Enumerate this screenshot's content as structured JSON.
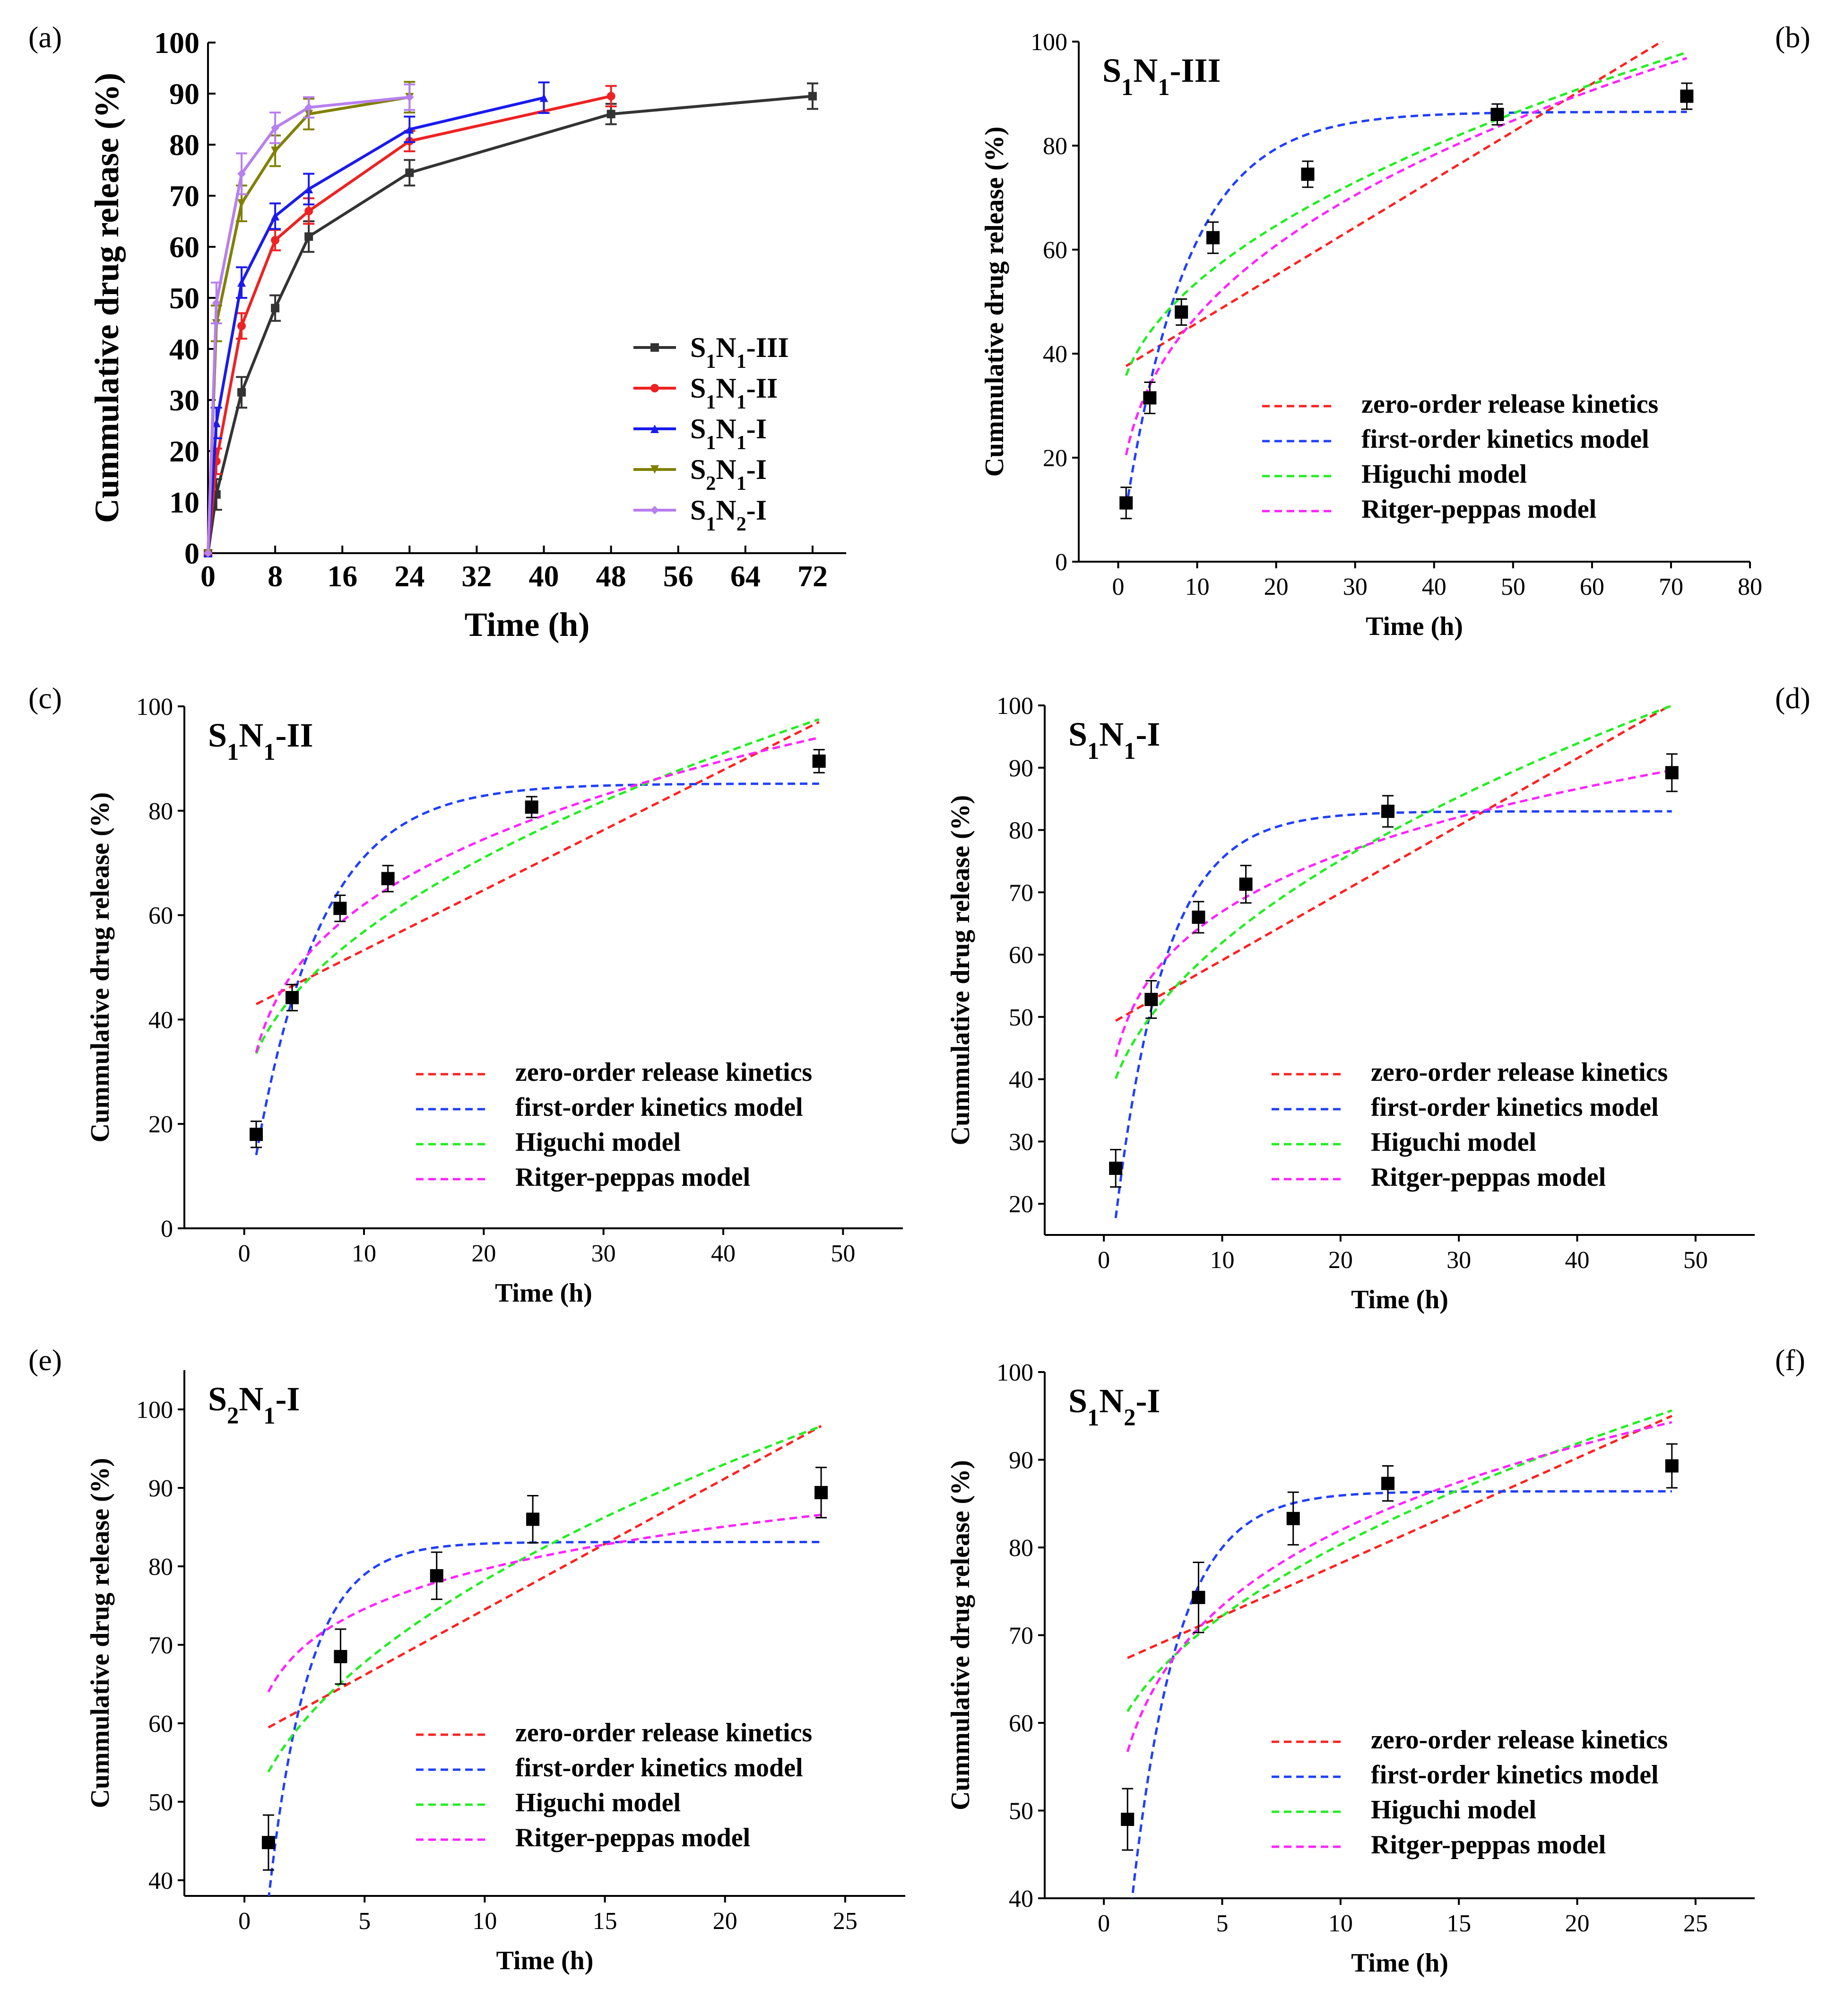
{
  "panel_labels": [
    "(a)",
    "(b)",
    "(c)",
    "(d)",
    "(e)",
    "(f)"
  ],
  "colors": {
    "S1N1-III": "#333333",
    "S1N1-II": "#ee2222",
    "S1N1-I": "#1a1aee",
    "S2N1-I": "#808000",
    "S1N2-I": "#b77fef",
    "zero": "#ff2020",
    "first": "#1f3fff",
    "higuchi": "#22ee22",
    "ritger": "#ff22ff",
    "points": "#000000"
  },
  "model_legend": [
    "zero-order release kinetics",
    "first-order kinetics model",
    "Higuchi model",
    "Ritger-peppas model"
  ],
  "chart_data": [
    {
      "id": "a",
      "type": "line",
      "xlabel": "Time (h)",
      "ylabel": "Cummulative drug release (%)",
      "xlim": [
        0,
        76
      ],
      "ylim": [
        0,
        100
      ],
      "xticks": [
        0,
        8,
        16,
        24,
        32,
        40,
        48,
        56,
        64,
        72
      ],
      "yticks": [
        0,
        10,
        20,
        30,
        40,
        50,
        60,
        70,
        80,
        90,
        100
      ],
      "legend_position": "center-right",
      "series": [
        {
          "name": "S1N1-III",
          "key": "S1N1-III",
          "sub": [
            "1",
            "1"
          ],
          "base": [
            "S",
            "N",
            "-III"
          ],
          "marker": "square",
          "x": [
            0,
            1,
            4,
            8,
            12,
            24,
            48,
            72
          ],
          "y": [
            0,
            11.5,
            31.5,
            48,
            62,
            74.5,
            86,
            89.5
          ],
          "err": [
            0,
            3,
            3,
            2.5,
            3,
            2.5,
            2,
            2.5
          ]
        },
        {
          "name": "S1N1-II",
          "key": "S1N1-II",
          "sub": [
            "1",
            "1"
          ],
          "base": [
            "S",
            "N",
            "-II"
          ],
          "marker": "circle",
          "x": [
            0,
            1,
            4,
            8,
            12,
            24,
            48
          ],
          "y": [
            0,
            18,
            44.5,
            61.3,
            67,
            80.7,
            89.5
          ],
          "err": [
            0,
            2.5,
            2.5,
            2,
            2.5,
            2,
            2
          ]
        },
        {
          "name": "S1N1-I",
          "key": "S1N1-I",
          "sub": [
            "1",
            "1"
          ],
          "base": [
            "S",
            "N",
            "-I"
          ],
          "marker": "triangle-up",
          "x": [
            0,
            1,
            4,
            8,
            12,
            24,
            40
          ],
          "y": [
            0,
            25.5,
            53,
            66,
            71.3,
            83,
            89.2
          ],
          "err": [
            0,
            3,
            3,
            2.5,
            3,
            2.5,
            3
          ]
        },
        {
          "name": "S2N1-I",
          "key": "S2N1-I",
          "sub": [
            "2",
            "1"
          ],
          "base": [
            "S",
            "N",
            "-I"
          ],
          "marker": "triangle-down",
          "x": [
            0,
            1,
            4,
            8,
            12,
            24
          ],
          "y": [
            0,
            45,
            68.5,
            78.8,
            86,
            89.3
          ],
          "err": [
            0,
            3.5,
            3.5,
            3,
            3,
            3
          ]
        },
        {
          "name": "S1N2-I",
          "key": "S1N2-I",
          "sub": [
            "1",
            "2"
          ],
          "base": [
            "S",
            "N",
            "-I"
          ],
          "marker": "diamond",
          "x": [
            0,
            1,
            4,
            8,
            12,
            24
          ],
          "y": [
            0,
            49,
            74.3,
            83.3,
            87.3,
            89.3
          ],
          "err": [
            0,
            4,
            4,
            3,
            2,
            2.5
          ]
        }
      ]
    },
    {
      "id": "b",
      "type": "scatter",
      "title": {
        "base": [
          "S",
          "N",
          "-III"
        ],
        "sub": [
          "1",
          "1"
        ]
      },
      "xlabel": "Time (h)",
      "ylabel": "Cummulative drug release (%)",
      "xlim": [
        -5,
        80
      ],
      "ylim": [
        0,
        100
      ],
      "xticks": [
        0,
        10,
        20,
        30,
        40,
        50,
        60,
        70,
        80
      ],
      "yticks": [
        0,
        20,
        40,
        60,
        80,
        100
      ],
      "legend_position": "bottom-right",
      "points": {
        "x": [
          1,
          4,
          8,
          12,
          24,
          48,
          72
        ],
        "y": [
          11.3,
          31.5,
          48,
          62.3,
          74.5,
          86,
          89.5
        ],
        "err": [
          3,
          3,
          2.5,
          3,
          2.5,
          2,
          2.5
        ]
      },
      "models": {
        "zero": {
          "a": 36.7,
          "b": 0.92,
          "x_end": 72
        },
        "first": {
          "qmax": 86.5,
          "k": 0.125
        },
        "higuchi": {
          "a": 27.5,
          "b": 8.3
        },
        "ritger": {
          "k": 20.5,
          "n": 0.363
        }
      }
    },
    {
      "id": "c",
      "type": "scatter",
      "title": {
        "base": [
          "S",
          "N",
          "-II"
        ],
        "sub": [
          "1",
          "1"
        ]
      },
      "xlabel": "Time (h)",
      "ylabel": "Cummulative drug release (%)",
      "xlim": [
        -5,
        55
      ],
      "ylim": [
        0,
        100
      ],
      "xticks": [
        0,
        10,
        20,
        30,
        40,
        50
      ],
      "yticks": [
        0,
        20,
        40,
        60,
        80,
        100
      ],
      "legend_position": "bottom-right",
      "points": {
        "x": [
          1,
          4,
          8,
          12,
          24,
          48
        ],
        "y": [
          18,
          44.2,
          61.3,
          67,
          80.7,
          89.5
        ],
        "err": [
          2.5,
          2.5,
          2.5,
          2.5,
          2,
          2.2
        ]
      },
      "models": {
        "zero": {
          "a": 41.8,
          "b": 1.15,
          "x_end": 48
        },
        "first": {
          "qmax": 85.2,
          "k": 0.18
        },
        "higuchi": {
          "a": 22.7,
          "b": 10.8
        },
        "ritger": {
          "k": 33.7,
          "n": 0.265
        }
      }
    },
    {
      "id": "d",
      "type": "scatter",
      "title": {
        "base": [
          "S",
          "N",
          "-I"
        ],
        "sub": [
          "1",
          "1"
        ]
      },
      "xlabel": "Time (h)",
      "ylabel": "Cummulative drug release (%)",
      "xlim": [
        -5,
        55
      ],
      "ylim": [
        15,
        100
      ],
      "xticks": [
        0,
        10,
        20,
        30,
        40,
        50
      ],
      "yticks": [
        20,
        30,
        40,
        50,
        60,
        70,
        80,
        90,
        100
      ],
      "legend_position": "bottom-right",
      "points": {
        "x": [
          1,
          4,
          8,
          12,
          24,
          48
        ],
        "y": [
          25.7,
          52.8,
          66,
          71.3,
          83,
          89.2
        ],
        "err": [
          3,
          3,
          2.5,
          3,
          2.5,
          3
        ]
      },
      "models": {
        "zero": {
          "a": 48.3,
          "b": 1.08,
          "x_end": 48
        },
        "first": {
          "qmax": 83,
          "k": 0.24
        },
        "higuchi": {
          "a": 30,
          "b": 10.1
        },
        "ritger": {
          "k": 43.6,
          "n": 0.186
        }
      }
    },
    {
      "id": "e",
      "type": "scatter",
      "title": {
        "base": [
          "S",
          "N",
          "-I"
        ],
        "sub": [
          "2",
          "1"
        ]
      },
      "xlabel": "Time (h)",
      "ylabel": "Cummulative drug release (%)",
      "xlim": [
        -2.5,
        27.5
      ],
      "ylim": [
        38,
        105
      ],
      "xticks": [
        0,
        5,
        10,
        15,
        20,
        25
      ],
      "yticks": [
        40,
        50,
        60,
        70,
        80,
        90,
        100
      ],
      "legend_position": "bottom-right",
      "points": {
        "x": [
          1,
          4,
          8,
          12,
          24
        ],
        "y": [
          44.8,
          68.5,
          78.8,
          86,
          89.4
        ],
        "err": [
          3.5,
          3.5,
          3,
          3,
          3.2
        ]
      },
      "models": {
        "zero": {
          "a": 57.8,
          "b": 1.67,
          "x_end": 24
        },
        "first": {
          "qmax": 83.1,
          "k": 0.6
        },
        "higuchi": {
          "a": 42.5,
          "b": 11.3
        },
        "ritger": {
          "k": 64,
          "n": 0.095
        }
      }
    },
    {
      "id": "f",
      "type": "scatter",
      "title": {
        "base": [
          "S",
          "N",
          "-I"
        ],
        "sub": [
          "1",
          "2"
        ]
      },
      "xlabel": "Time (h)",
      "ylabel": "Cummulative drug release (%)",
      "xlim": [
        -2.5,
        27.5
      ],
      "ylim": [
        40,
        100
      ],
      "xticks": [
        0,
        5,
        10,
        15,
        20,
        25
      ],
      "yticks": [
        40,
        50,
        60,
        70,
        80,
        90,
        100
      ],
      "legend_position": "bottom-right",
      "points": {
        "x": [
          1,
          4,
          8,
          12,
          24
        ],
        "y": [
          49,
          74.3,
          83.3,
          87.3,
          89.3
        ],
        "err": [
          3.5,
          4,
          3,
          2,
          2.5
        ]
      },
      "models": {
        "zero": {
          "a": 66.2,
          "b": 1.2,
          "x_end": 24
        },
        "first": {
          "qmax": 86.4,
          "k": 0.52
        },
        "higuchi": {
          "a": 52.5,
          "b": 8.8
        },
        "ritger": {
          "k": 56.7,
          "n": 0.16
        }
      }
    }
  ]
}
